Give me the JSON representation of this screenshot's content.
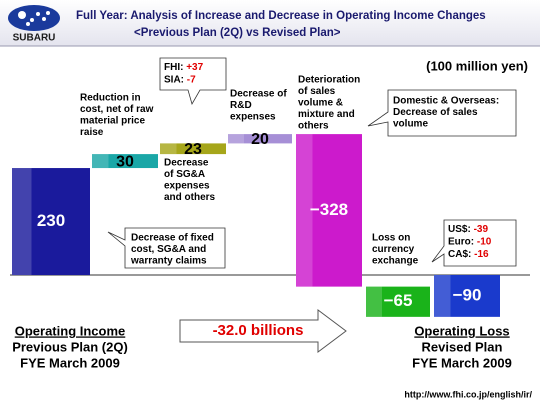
{
  "header": {
    "logo": "SUBARU",
    "title": "Full Year:  Analysis of Increase and Decrease in Operating Income Changes",
    "subtitle": "<Previous Plan (2Q) vs Revised Plan>"
  },
  "unit": "(100 million yen)",
  "chart_data": {
    "type": "waterfall",
    "categories": [
      null,
      [
        "Reduction in",
        "cost, net of raw",
        "material price",
        "raise"
      ],
      [
        "Decrease",
        "of SG&A",
        "expenses",
        "and others"
      ],
      [
        "Decrease of",
        "R&D",
        "expenses"
      ],
      [
        "Deterioration",
        "of sales",
        "volume &",
        "mixture and",
        "others"
      ],
      [
        "Loss on",
        "currency",
        "exchange"
      ],
      null
    ],
    "values": [
      230,
      30,
      23,
      20,
      -328,
      -65,
      -90
    ],
    "value_labels": [
      "230",
      "30",
      "23",
      "20",
      "−328",
      "−65",
      "−90"
    ],
    "colors": [
      "#1a1a9c",
      "#1aa7a7",
      "#a6a61a",
      "#a68fd6",
      "#cc1acc",
      "#1ab31a",
      "#1a3acc"
    ],
    "total_index": 6
  },
  "callouts": [
    {
      "lines": [
        "Decrease of fixed",
        "cost, SG&A and",
        "warranty claims"
      ]
    },
    {
      "rows": [
        [
          "FHI: ",
          "+37"
        ],
        [
          "SIA: ",
          "-7"
        ]
      ]
    },
    {
      "lines": [
        "Domestic & Overseas:",
        "Decrease of sales",
        "volume"
      ]
    },
    {
      "rows": [
        [
          "US$: ",
          "-39"
        ],
        [
          "Euro: ",
          "-10"
        ],
        [
          "CA$: ",
          "-16"
        ]
      ]
    }
  ],
  "left_label": [
    "Operating Income",
    "Previous Plan (2Q)",
    "FYE March 2009"
  ],
  "right_label": [
    "Operating Loss",
    "Revised Plan",
    "FYE March 2009"
  ],
  "arrow_text": "-32.0 billions",
  "footer": "http://www.fhi.co.jp/english/ir/"
}
